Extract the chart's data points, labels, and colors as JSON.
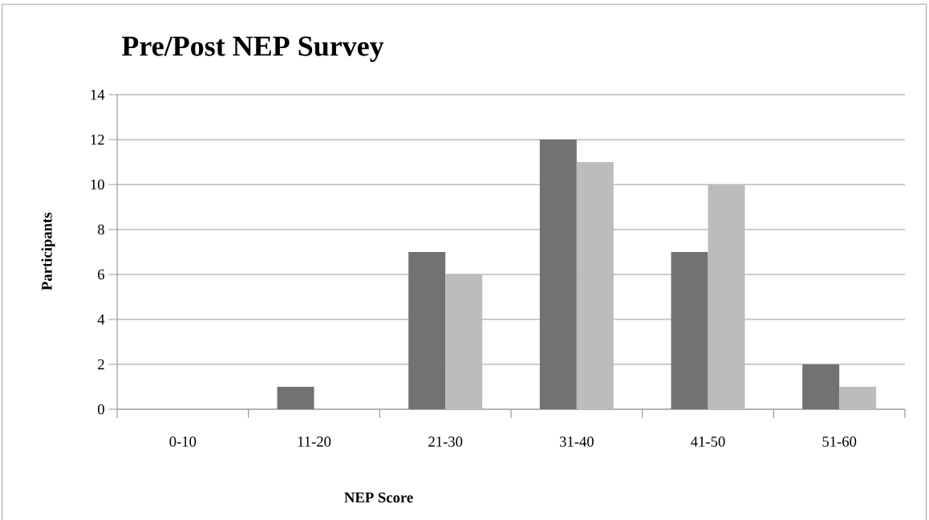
{
  "chart_data": {
    "type": "bar",
    "title": "Pre/Post NEP Survey",
    "xlabel": "NEP Score",
    "ylabel": "Participants",
    "categories": [
      "0-10",
      "11-20",
      "21-30",
      "31-40",
      "41-50",
      "51-60"
    ],
    "series": [
      {
        "color": "#727272",
        "values": [
          0,
          1,
          7,
          12,
          7,
          2
        ]
      },
      {
        "color": "#bcbcbc",
        "values": [
          0,
          0,
          6,
          11,
          10,
          1
        ]
      }
    ],
    "ylim": [
      0,
      14
    ],
    "yticks": [
      0,
      2,
      4,
      6,
      8,
      10,
      12,
      14
    ],
    "grid": "y",
    "legend": false
  }
}
